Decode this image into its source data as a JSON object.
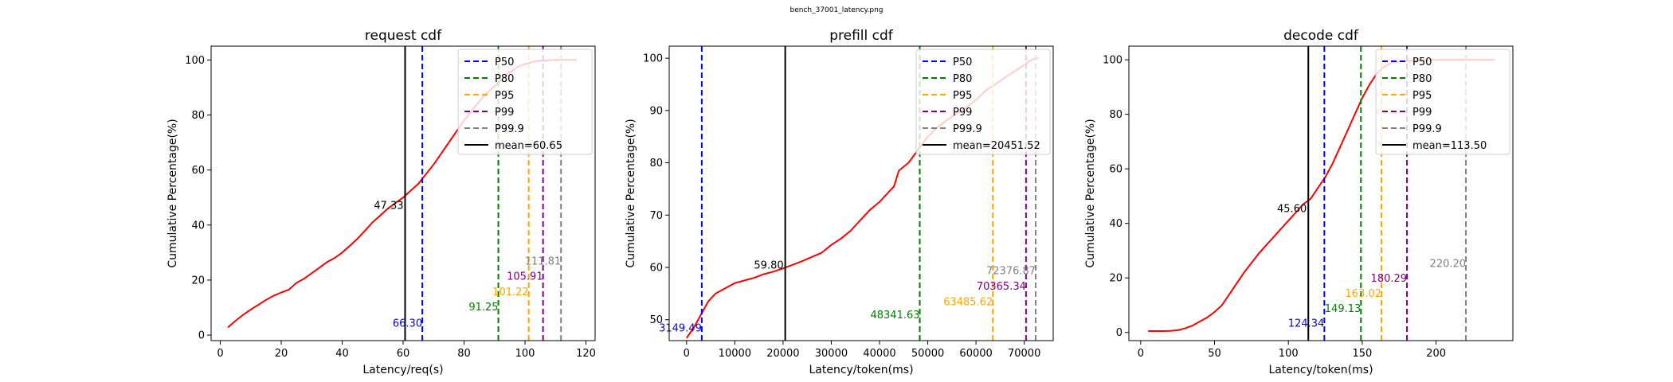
{
  "figure_title": "bench_37001_latency.png",
  "colors": {
    "P50": "#0000ff",
    "P80": "#008000",
    "P95": "#ffa500",
    "P99": "#800080",
    "P99.9": "#808080",
    "mean": "#000000",
    "cdf": "#ff0000"
  },
  "chart_data": [
    {
      "type": "line",
      "title": "request cdf",
      "xlabel": "Latency/req(s)",
      "ylabel": "Cumulative Percentage(%)",
      "xlim": [
        -3,
        123
      ],
      "ylim": [
        -2,
        105
      ],
      "xticks": [
        0,
        20,
        40,
        60,
        80,
        100,
        120
      ],
      "yticks": [
        0,
        20,
        40,
        60,
        80,
        100
      ],
      "legend": "top-right",
      "legend_entries": [
        "P50",
        "P80",
        "P95",
        "P99",
        "P99.9",
        "mean=60.65"
      ],
      "mean": {
        "label": "mean=60.65",
        "value": 60.65,
        "annotation": "47.33",
        "annotation_y": 47.33
      },
      "percentiles": [
        {
          "name": "P50",
          "value": 66.3,
          "label": "66.30",
          "label_y": 4.5
        },
        {
          "name": "P80",
          "value": 91.25,
          "label": "91.25",
          "label_y": 10.5
        },
        {
          "name": "P95",
          "value": 101.22,
          "label": "101.22",
          "label_y": 16
        },
        {
          "name": "P99",
          "value": 105.91,
          "label": "105.91",
          "label_y": 21.5
        },
        {
          "name": "P99.9",
          "value": 111.81,
          "label": "111.81",
          "label_y": 27
        }
      ],
      "series": [
        {
          "x": [
            2.5,
            5,
            7.5,
            10,
            12.5,
            15,
            17.5,
            20,
            22.5,
            25,
            27.5,
            30,
            32.5,
            35,
            37.5,
            40,
            42.5,
            45,
            47.5,
            50,
            52.5,
            55,
            57.5,
            60,
            62.5,
            65,
            67.5,
            70,
            72.5,
            75,
            77.5,
            80,
            82.5,
            85,
            87.5,
            90,
            92.5,
            95,
            97.5,
            100,
            102.5,
            105,
            107.5,
            110,
            112.5,
            115,
            117
          ],
          "values": [
            2.8,
            5.2,
            7.4,
            9.3,
            11,
            12.8,
            14.3,
            15.5,
            16.5,
            19,
            20.5,
            22.5,
            24.5,
            26.5,
            28,
            30,
            32.5,
            35,
            38,
            41,
            43.5,
            46,
            48,
            50,
            52.5,
            55,
            58.5,
            62,
            66,
            70,
            74,
            78,
            81.5,
            85,
            88,
            90.5,
            93,
            95.5,
            97.5,
            98.5,
            99.3,
            99.7,
            99.9,
            100,
            100,
            100,
            100
          ]
        }
      ]
    },
    {
      "type": "line",
      "title": "prefill cdf",
      "xlabel": "Latency/token(ms)",
      "ylabel": "Cumulative Percentage(%)",
      "xlim": [
        -3600,
        76000
      ],
      "ylim": [
        46,
        102.3
      ],
      "xticks": [
        0,
        10000,
        20000,
        30000,
        40000,
        50000,
        60000,
        70000
      ],
      "yticks": [
        50,
        60,
        70,
        80,
        90,
        100
      ],
      "legend": "top-right",
      "legend_entries": [
        "P50",
        "P80",
        "P95",
        "P99",
        "P99.9",
        "mean=20451.52"
      ],
      "mean": {
        "label": "mean=20451.52",
        "value": 20451.52,
        "annotation": "59.80",
        "annotation_y": 60.5
      },
      "percentiles": [
        {
          "name": "P50",
          "value": 3149.49,
          "label": "3149.49",
          "label_y": 48.5
        },
        {
          "name": "P80",
          "value": 48341.63,
          "label": "48341.63",
          "label_y": 51
        },
        {
          "name": "P95",
          "value": 63485.62,
          "label": "63485.62",
          "label_y": 53.5
        },
        {
          "name": "P99",
          "value": 70365.34,
          "label": "70365.34",
          "label_y": 56.5
        },
        {
          "name": "P99.9",
          "value": 72376.87,
          "label": "72376.87",
          "label_y": 59.5
        }
      ],
      "series": [
        {
          "x": [
            0,
            1500,
            3000,
            4500,
            6000,
            8000,
            10000,
            12000,
            14000,
            16000,
            18000,
            20000,
            22000,
            24000,
            26000,
            28000,
            30000,
            32000,
            34000,
            36000,
            38000,
            40000,
            42000,
            43000,
            44000,
            46000,
            48000,
            50000,
            52000,
            54000,
            56000,
            58000,
            60000,
            62000,
            64000,
            66000,
            68000,
            70000,
            71000,
            72000,
            73000
          ],
          "values": [
            46.5,
            48.5,
            51,
            53.5,
            55,
            56,
            57,
            57.5,
            58,
            58.7,
            59.2,
            59.8,
            60.5,
            61.2,
            62,
            62.8,
            64.3,
            65.5,
            67,
            69,
            71,
            72.5,
            74.5,
            75.5,
            78.5,
            80,
            82.5,
            85,
            86.8,
            88.2,
            89.4,
            90.6,
            92,
            93.8,
            95,
            96.3,
            97.5,
            98.7,
            99.4,
            99.9,
            100
          ]
        }
      ]
    },
    {
      "type": "line",
      "title": "decode cdf",
      "xlabel": "Latency/token(ms)",
      "ylabel": "Cumulative Percentage(%)",
      "xlim": [
        -8,
        252
      ],
      "ylim": [
        -3,
        105
      ],
      "xticks": [
        0,
        50,
        100,
        150,
        200
      ],
      "yticks": [
        0,
        20,
        40,
        60,
        80,
        100
      ],
      "legend": "top-right",
      "legend_entries": [
        "P50",
        "P80",
        "P95",
        "P99",
        "P99.9",
        "mean=113.50"
      ],
      "mean": {
        "label": "mean=113.50",
        "value": 113.5,
        "annotation": "45.60",
        "annotation_y": 45.6
      },
      "percentiles": [
        {
          "name": "P50",
          "value": 124.34,
          "label": "124.34",
          "label_y": 3.5
        },
        {
          "name": "P80",
          "value": 149.13,
          "label": "149.13",
          "label_y": 9
        },
        {
          "name": "P95",
          "value": 163.02,
          "label": "163.02",
          "label_y": 14.5
        },
        {
          "name": "P99",
          "value": 180.29,
          "label": "180.29",
          "label_y": 20
        },
        {
          "name": "P99.9",
          "value": 220.2,
          "label": "220.20",
          "label_y": 25.5
        }
      ],
      "series": [
        {
          "x": [
            5,
            10,
            15,
            20,
            25,
            30,
            35,
            40,
            45,
            50,
            55,
            60,
            65,
            70,
            75,
            80,
            85,
            90,
            95,
            100,
            105,
            110,
            115,
            120,
            125,
            130,
            135,
            140,
            145,
            150,
            155,
            160,
            165,
            170,
            180,
            190,
            200,
            210,
            220,
            230,
            240
          ],
          "values": [
            0.5,
            0.5,
            0.5,
            0.6,
            0.8,
            1.5,
            2.5,
            4,
            5.5,
            7.5,
            10,
            14,
            18,
            22,
            25.5,
            29,
            32,
            35,
            38,
            41,
            44,
            47,
            49,
            53,
            57,
            62,
            68,
            74,
            80,
            86,
            91,
            95,
            97.5,
            99,
            99.5,
            99.8,
            100,
            100,
            100,
            100,
            100
          ]
        }
      ]
    }
  ]
}
